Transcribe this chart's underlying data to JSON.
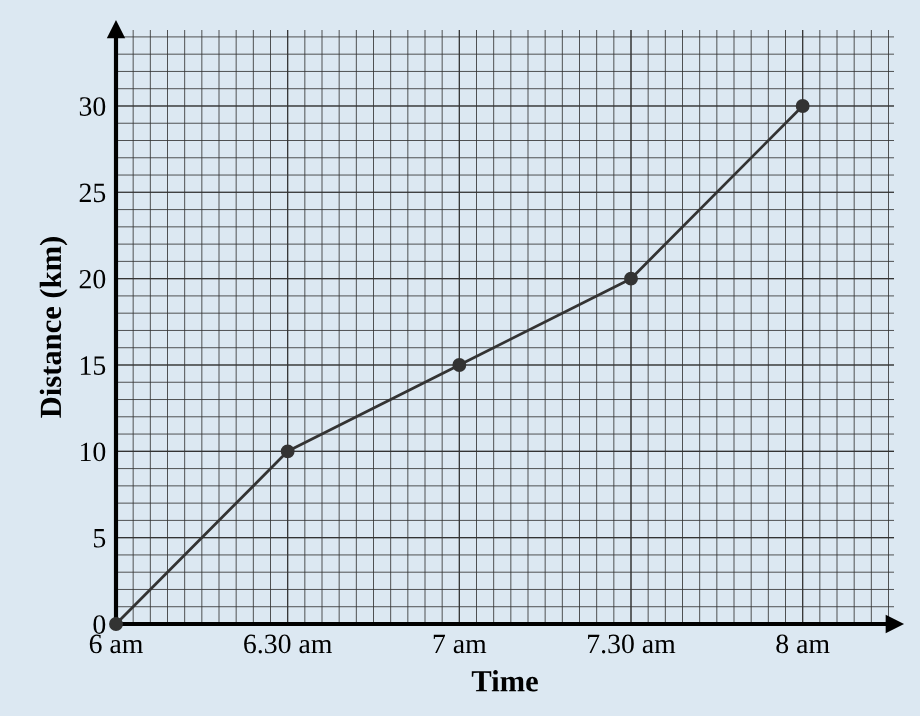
{
  "chart_data": {
    "type": "line",
    "xlabel": "Time",
    "ylabel": "Distance (km)",
    "categories": [
      "6 am",
      "6.30 am",
      "7 am",
      "7.30 am",
      "8 am"
    ],
    "series": [
      {
        "color": "#333333",
        "values": [
          0,
          10,
          15,
          20,
          30
        ]
      }
    ],
    "ylim": [
      0,
      34.4
    ],
    "yticks": [
      0,
      5,
      10,
      15,
      20,
      25,
      30
    ],
    "grid": true,
    "marker": "circle",
    "line_style": "solid"
  }
}
